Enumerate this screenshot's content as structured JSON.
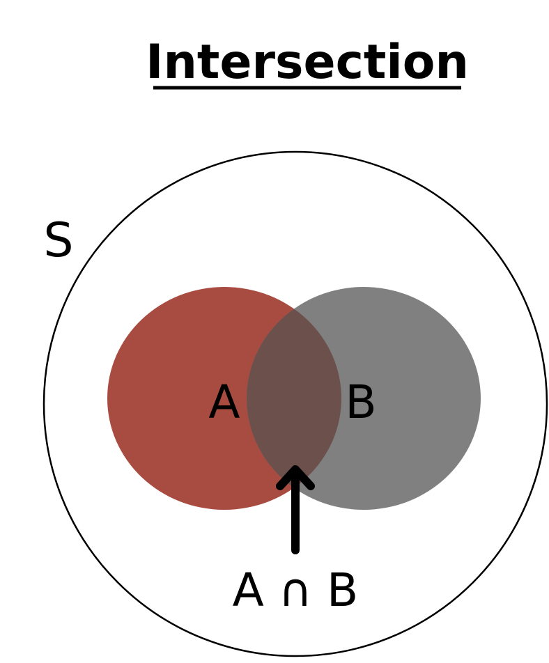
{
  "title": "Intersection",
  "universe": {
    "label": "S"
  },
  "sets": [
    {
      "label": "A",
      "color": "#a84b40"
    },
    {
      "label": "B",
      "color": "#808080"
    }
  ],
  "intersection": {
    "label": "A ∩ B",
    "color": "#6b504c"
  },
  "colors": {
    "outline": "#000000",
    "background": "#ffffff",
    "text": "#000000"
  }
}
